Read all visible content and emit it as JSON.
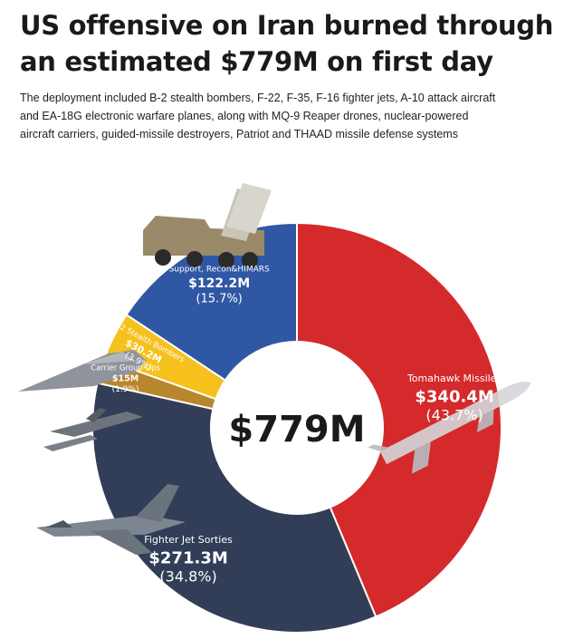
{
  "header": {
    "title_line1": "US offensive on Iran burned through",
    "title_line2": "an estimated $779M on first day",
    "subtitle_line1": "The deployment included B-2 stealth bombers, F-22, F-35, F-16 fighter jets, A-10 attack aircraft",
    "subtitle_line2": "and EA-18G electronic warfare planes, along with MQ-9 Reaper drones, nuclear-powered",
    "subtitle_line3": "aircraft carriers, guided-missile destroyers, Patriot and THAAD missile defense systems"
  },
  "chart_data": {
    "type": "pie",
    "donut": true,
    "center_label": "$779M",
    "total": 779,
    "unit": "$M",
    "slices": [
      {
        "label": "Tomahawk Missiles",
        "value": 340.4,
        "value_label": "$340.4M",
        "pct_label": "(43.7%)",
        "color": "#d42a2b"
      },
      {
        "label": "Fighter Jet Sorties",
        "value": 271.3,
        "value_label": "$271.3M",
        "pct_label": "(34.8%)",
        "color": "#323d57"
      },
      {
        "label": "Carrier Group Ops",
        "value": 15,
        "value_label": "$15M",
        "pct_label": "(1.9%)",
        "color": "#b8862c"
      },
      {
        "label": "B-2 Stealth Bombers",
        "value": 30.2,
        "value_label": "$30.2M",
        "pct_label": "(3.9%)",
        "color": "#f6c11c"
      },
      {
        "label": "Support, Recon&HIMARS",
        "value": 122.2,
        "value_label": "$122.2M",
        "pct_label": "(15.7%)",
        "color": "#2f57a4"
      }
    ]
  },
  "illustrations": [
    "thaad-launcher-truck-image",
    "b2-bomber-image",
    "aircraft-carrier-image",
    "fighter-jet-image",
    "tomahawk-missile-image"
  ]
}
